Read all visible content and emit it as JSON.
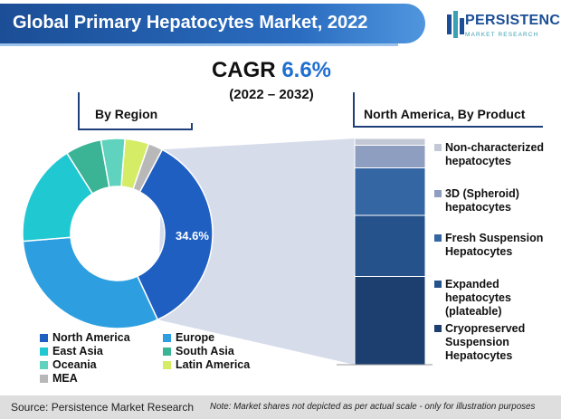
{
  "header": {
    "title": "Global Primary Hepatocytes Market, 2022",
    "cagr_label": "CAGR",
    "cagr_value": "6.6%",
    "period": "(2022 – 2032)"
  },
  "logo": {
    "name": "PERSISTENCE",
    "tagline": "MARKET RESEARCH"
  },
  "footer": {
    "source": "Source: Persistence Market Research",
    "note": "Note: Market shares not depicted as per actual scale - only for illustration purposes"
  },
  "colors": {
    "title_bar": "#1b4e96",
    "accent": "#1f6fd1"
  },
  "chart_data": [
    {
      "type": "pie",
      "variant": "donut",
      "title": "By Region",
      "categories": [
        "North America",
        "Europe",
        "East Asia",
        "South Asia",
        "Oceania",
        "Latin America",
        "MEA"
      ],
      "values": [
        34.6,
        30.0,
        17.0,
        6.0,
        4.0,
        4.0,
        2.4
      ],
      "labeled_values": {
        "North America": "34.6%"
      },
      "colors": [
        "#1f5fc2",
        "#2d9fe0",
        "#20c8d2",
        "#3bb395",
        "#5fd3bd",
        "#d4ec66",
        "#b8b8b8"
      ],
      "legend_position": "bottom"
    },
    {
      "type": "bar",
      "variant": "stacked-100",
      "title": "North America, By Product",
      "categories": [
        "North America"
      ],
      "series": [
        {
          "name": "Cryopreserved Suspension Hepatocytes",
          "values": [
            39.0
          ],
          "color": "#1d3f6f"
        },
        {
          "name": "Expanded hepatocytes (plateable)",
          "values": [
            27.0
          ],
          "color": "#26528c"
        },
        {
          "name": "Fresh Suspension Hepatocytes",
          "values": [
            21.0
          ],
          "color": "#3566a4"
        },
        {
          "name": "3D (Spheroid) hepatocytes",
          "values": [
            10.0
          ],
          "color": "#8e9ec0"
        },
        {
          "name": "Non-characterized hepatocytes",
          "values": [
            3.0
          ],
          "color": "#c2c8d6"
        }
      ],
      "legend_position": "right"
    }
  ]
}
